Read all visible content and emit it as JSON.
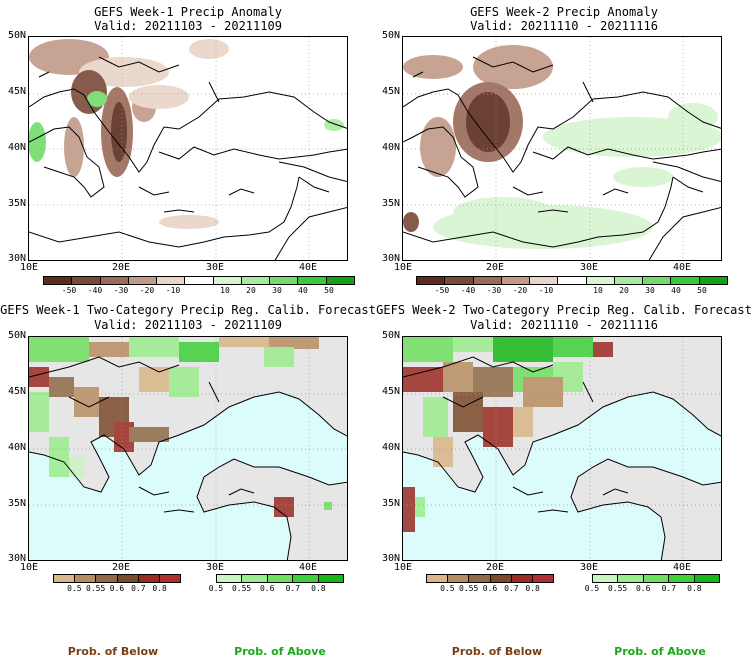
{
  "panels": [
    {
      "title": "GEFS Week-1 Precip Anomaly",
      "valid": "Valid: 20211103 - 20211109"
    },
    {
      "title": "GEFS Week-2 Precip Anomaly",
      "valid": "Valid: 20211110 - 20211116"
    },
    {
      "title": "GEFS Week-1 Two-Category Precip Reg. Calib. Forecast",
      "valid": "Valid: 20211103 - 20211109"
    },
    {
      "title": "GEFS Week-2 Two-Category Precip Reg. Calib. Forecast",
      "valid": "Valid: 20211110 - 20211116"
    }
  ],
  "lat_labels": [
    "50N",
    "45N",
    "40N",
    "35N",
    "30N"
  ],
  "lon_labels": [
    "10E",
    "20E",
    "30E",
    "40E"
  ],
  "anomaly_ticks": [
    "-50",
    "-40",
    "-30",
    "-20",
    "-10",
    "10",
    "20",
    "30",
    "40",
    "50"
  ],
  "anomaly_colors": [
    "#5a2d1e",
    "#7a4a38",
    "#9b6a58",
    "#c29a88",
    "#e8d4c8",
    "#ffffff",
    "#d6f5d0",
    "#a8eaa0",
    "#74dc6c",
    "#3cc83c",
    "#16a016"
  ],
  "prob_ticks": [
    "0.5",
    "0.55",
    "0.6",
    "0.7",
    "0.8"
  ],
  "below_colors": [
    "#d9b587",
    "#b88d62",
    "#8f6a45",
    "#7a4a2a",
    "#9b2c22",
    "#b03030"
  ],
  "above_colors": [
    "#c8f5c0",
    "#9aed8c",
    "#6fe060",
    "#3fd03a",
    "#18b818"
  ],
  "legend": {
    "below": "Prob. of Below",
    "above": "Prob. of Above"
  },
  "colors": {
    "sea": "#dcfcfc",
    "land_gray": "#e6e6e6",
    "below_text": "#7a3d18",
    "above_text": "#1aa81a"
  }
}
